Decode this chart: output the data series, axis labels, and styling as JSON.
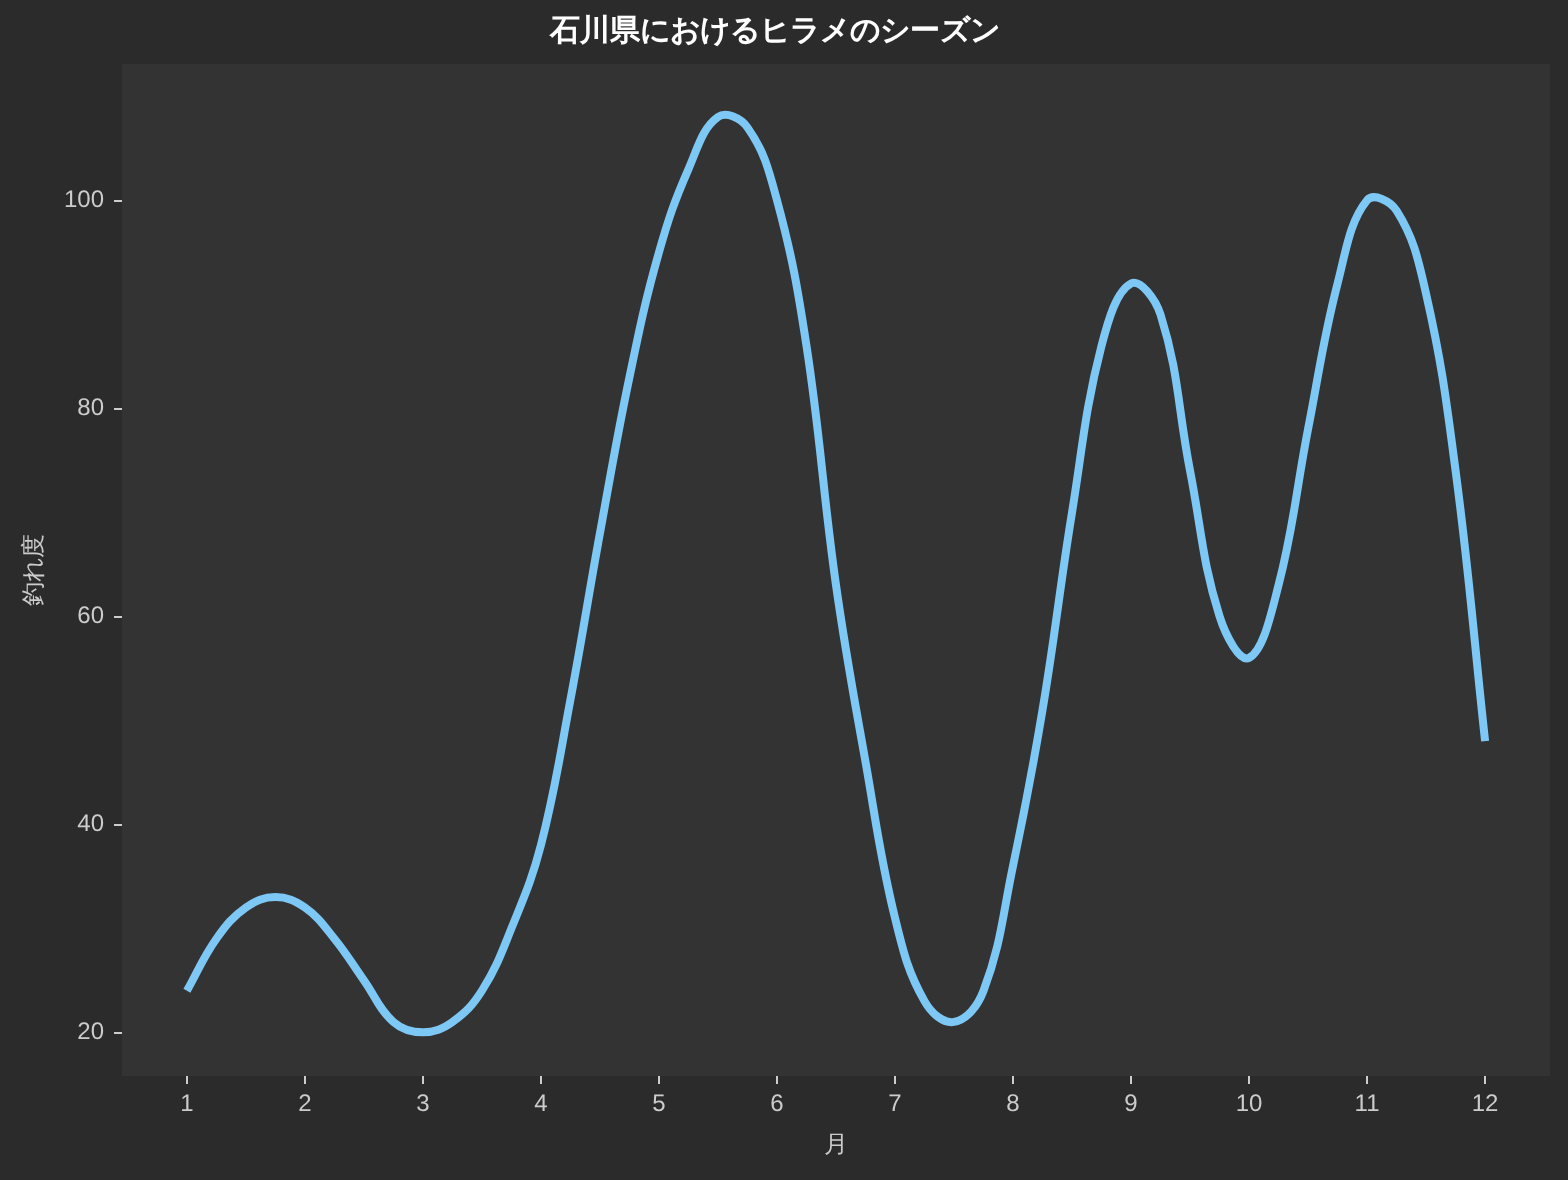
{
  "chart_data": {
    "type": "line",
    "title": "石川県におけるヒラメのシーズン",
    "xlabel": "月",
    "ylabel": "釣れ度",
    "x": [
      1,
      1.25,
      1.5,
      1.75,
      2,
      2.25,
      2.5,
      2.75,
      3,
      3.25,
      3.5,
      3.75,
      4,
      4.25,
      4.5,
      4.75,
      5,
      5.25,
      5.5,
      5.75,
      6,
      6.25,
      6.5,
      6.75,
      7,
      7.25,
      7.5,
      7.75,
      8,
      8.25,
      8.5,
      8.75,
      9,
      9.25,
      9.5,
      9.75,
      10,
      10.25,
      10.5,
      10.75,
      11,
      11.25,
      11.5,
      11.75,
      12
    ],
    "series": [
      {
        "color": "#7ec8f5",
        "values": [
          24,
          29,
          32,
          33,
          32,
          29,
          25,
          21,
          20,
          21,
          24,
          30,
          38,
          52,
          68,
          83,
          95,
          103,
          108,
          107,
          100,
          86,
          63,
          46,
          31,
          23,
          21,
          24,
          36,
          51,
          70,
          86,
          92,
          89,
          74,
          60,
          56,
          63,
          78,
          92,
          100,
          99,
          91,
          74,
          48
        ]
      }
    ],
    "xlim": [
      0.45,
      12.55
    ],
    "ylim": [
      15.8,
      113.1
    ],
    "xticks": [
      1,
      2,
      3,
      4,
      5,
      6,
      7,
      8,
      9,
      10,
      11,
      12
    ],
    "yticks": [
      20,
      40,
      60,
      80,
      100
    ],
    "marker": "none"
  }
}
